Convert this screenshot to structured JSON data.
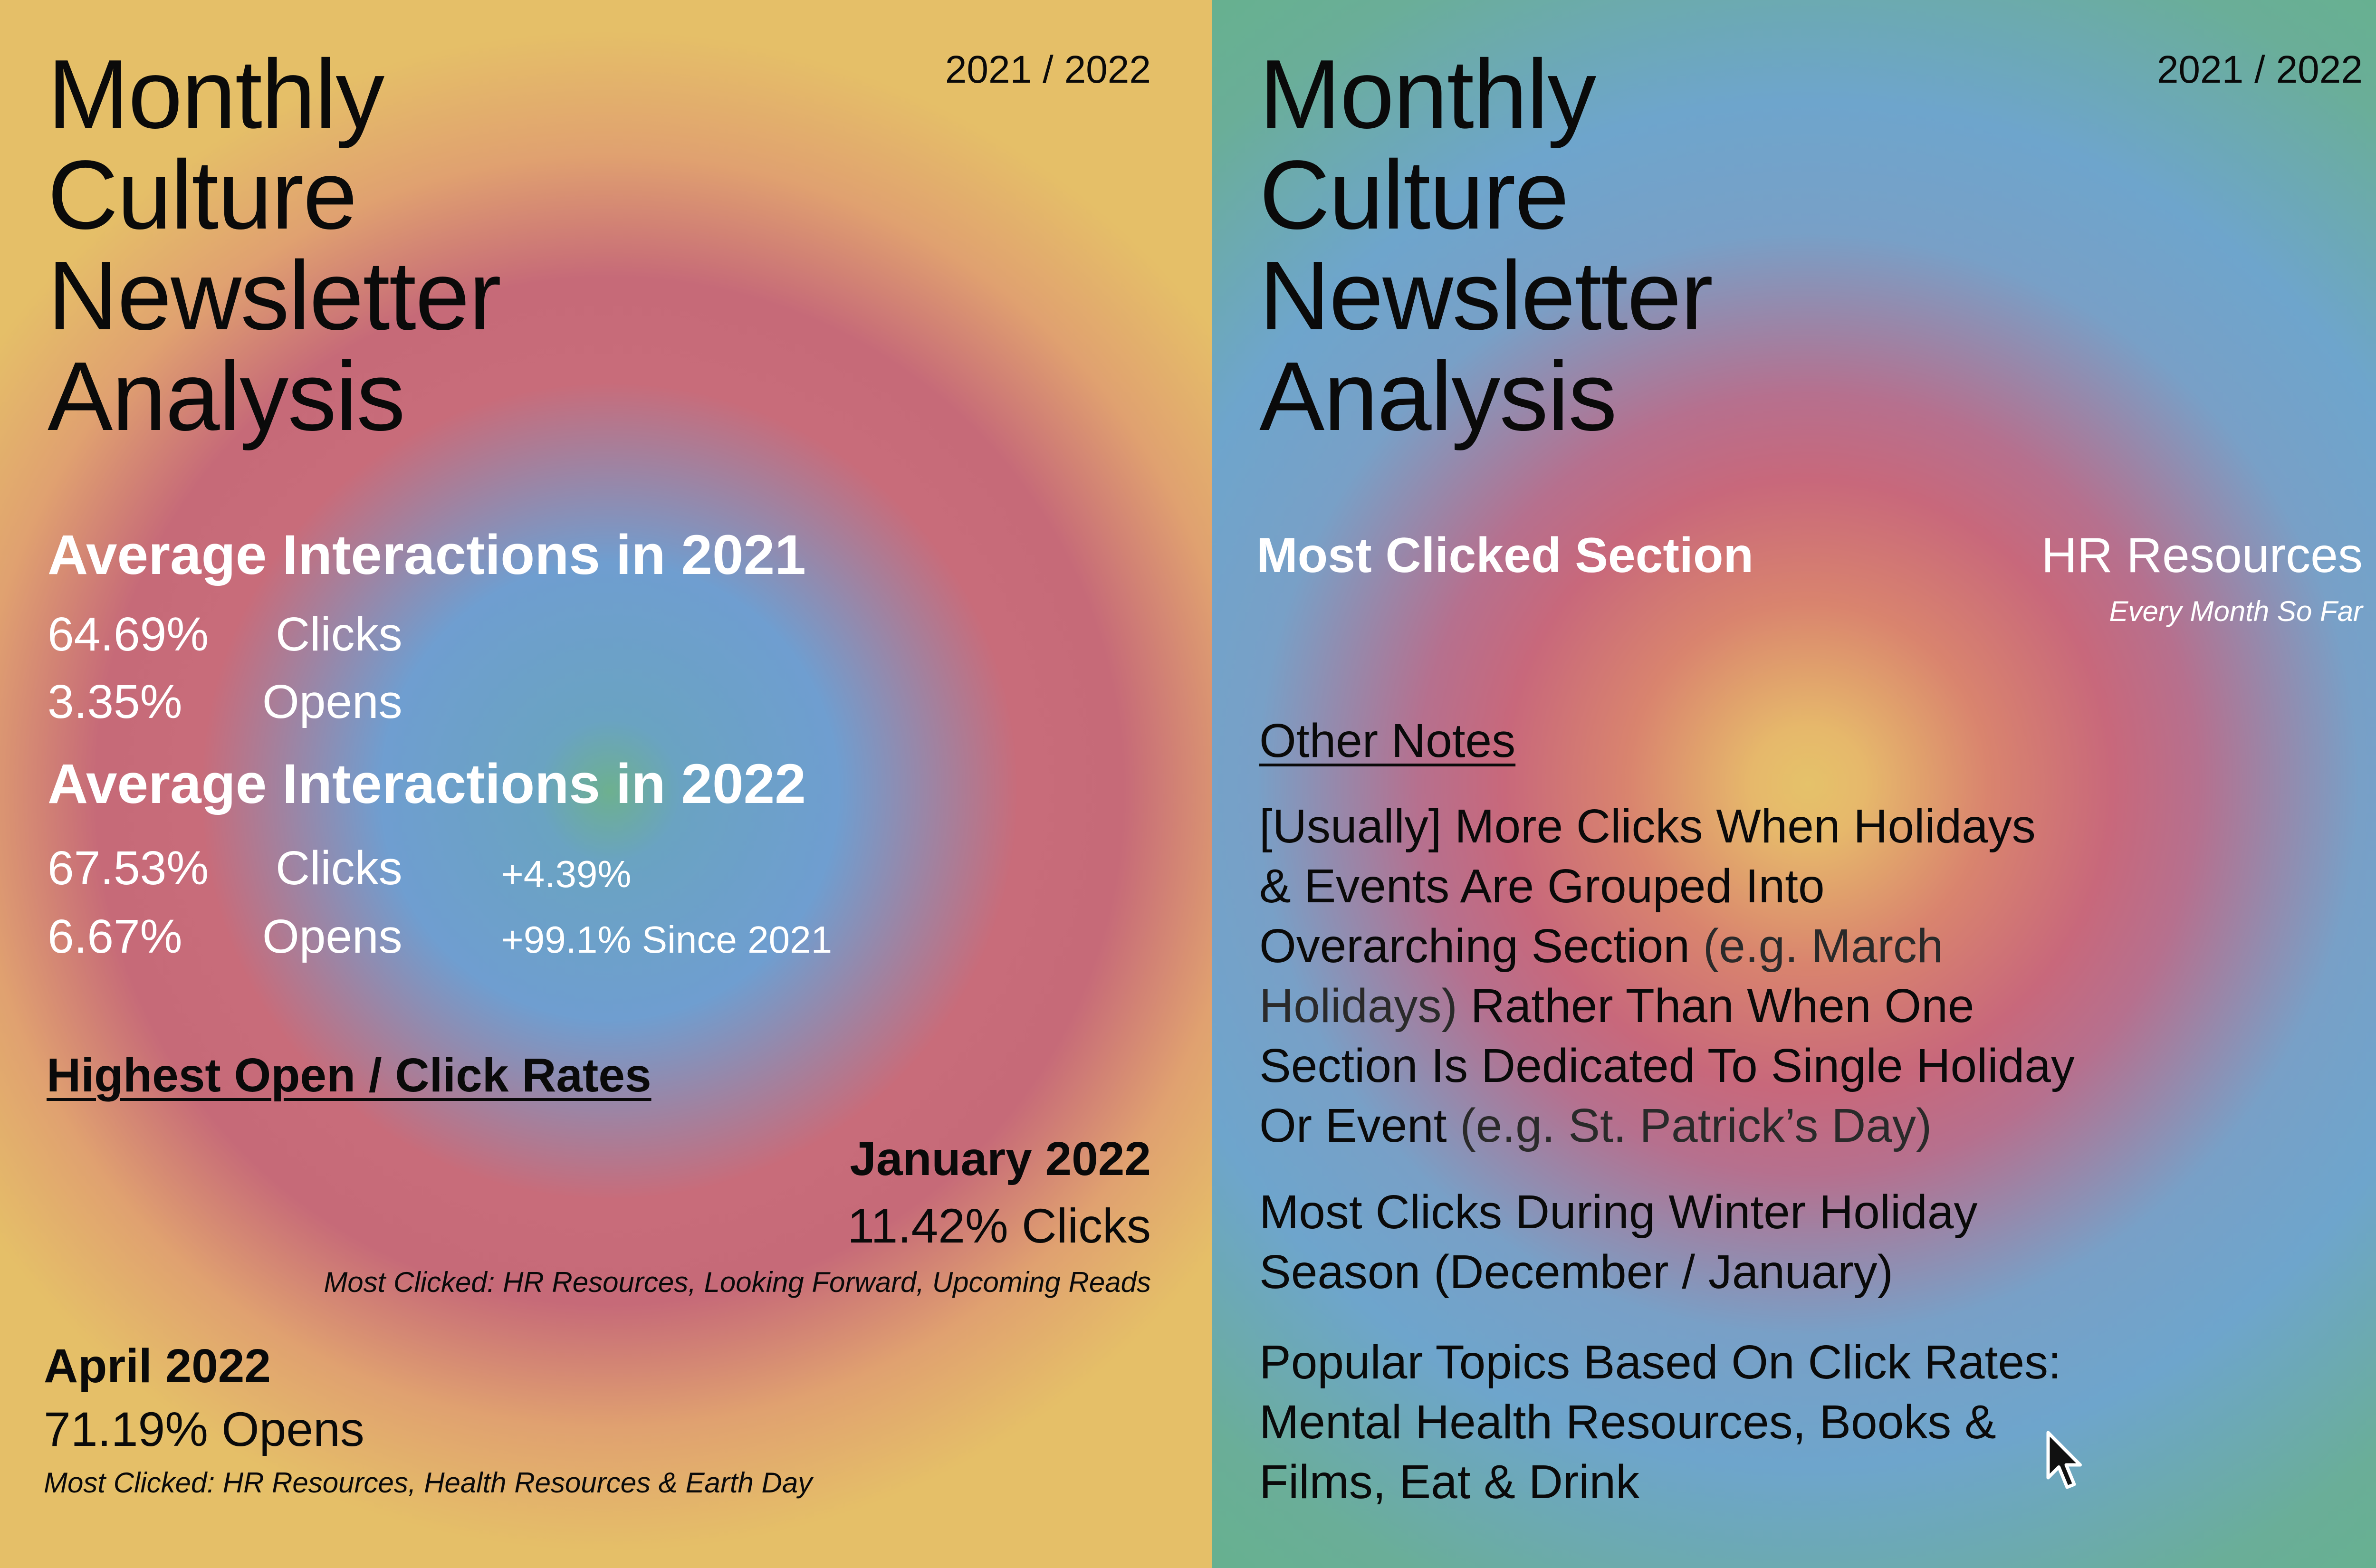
{
  "left": {
    "title_lines": [
      "Monthly",
      "Culture",
      "Newsletter",
      "Analysis"
    ],
    "year": "2021 / 2022",
    "avg_2021": {
      "heading": "Average Interactions in 2021",
      "clicks_value": "64.69%",
      "clicks_label": "Clicks",
      "opens_value": "3.35%",
      "opens_label": "Opens"
    },
    "avg_2022": {
      "heading": "Average Interactions in 2022",
      "clicks_value": "67.53%",
      "clicks_label": "Clicks",
      "clicks_delta": "+4.39%",
      "opens_value": "6.67%",
      "opens_label": "Opens",
      "opens_delta": "+99.1% Since 2021"
    },
    "highest": {
      "heading": "Highest Open / Click Rates",
      "jan": {
        "month": "January 2022",
        "rate": "11.42% Clicks",
        "note": "Most Clicked: HR Resources, Looking Forward, Upcoming Reads"
      },
      "apr": {
        "month": "April 2022",
        "rate": "71.19% Opens",
        "note": "Most Clicked: HR Resources, Health Resources & Earth Day"
      }
    }
  },
  "right": {
    "title_lines": [
      "Monthly",
      "Culture",
      "Newsletter",
      "Analysis"
    ],
    "year": "2021 / 2022",
    "most_clicked": {
      "label": "Most Clicked Section",
      "value": "HR Resources",
      "note": "Every Month So Far"
    },
    "other_notes": {
      "heading": "Other Notes",
      "note1": {
        "l1": "[Usually] More Clicks When Holidays",
        "l2": "& Events Are Grouped Into",
        "l3a": "Overarching Section",
        "l3b": " (e.g. March",
        "l4a": "Holidays)",
        "l4b": " Rather Than When One",
        "l5": "Section Is Dedicated To Single Holiday",
        "l6a": "Or Event",
        "l6b": " (e.g. St. Patrick’s Day)"
      },
      "note2": {
        "l1": "Most Clicks During Winter Holiday",
        "l2": "Season (December / January)"
      },
      "note3": {
        "l1": "Popular Topics Based On Click Rates:",
        "l2": "Mental Health Resources, Books &",
        "l3": "Films, Eat & Drink"
      }
    }
  },
  "icons": {
    "cursor": "mouse-pointer-icon"
  },
  "colors": {
    "left_bg": "#e5bf68",
    "right_bg": "#66b18e",
    "ring_red": "#c8687b",
    "ring_blue": "#6ea5cc"
  }
}
